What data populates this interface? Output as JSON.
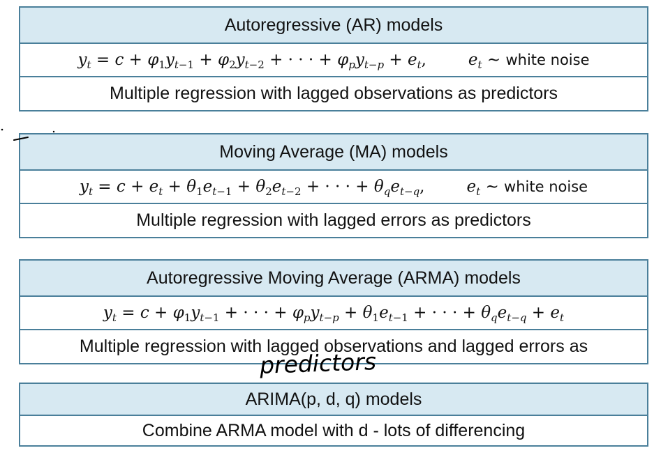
{
  "ar": {
    "title": "Autoregressive (AR) models",
    "description": "Multiple regression with lagged observations as predictors"
  },
  "ma": {
    "title": "Moving Average (MA) models",
    "description": "Multiple regression with lagged errors as predictors"
  },
  "arma": {
    "title": "Autoregressive Moving Average (ARMA) models",
    "description": "Multiple regression with lagged observations and lagged errors as"
  },
  "arima": {
    "title": "ARIMA(p, d, q) models",
    "description": "Combine ARMA model with d - lots of differencing"
  },
  "annotation": {
    "handwritten": "predictors"
  },
  "colors": {
    "border": "#4a7f9a",
    "header_fill": "#d7e9f2"
  }
}
